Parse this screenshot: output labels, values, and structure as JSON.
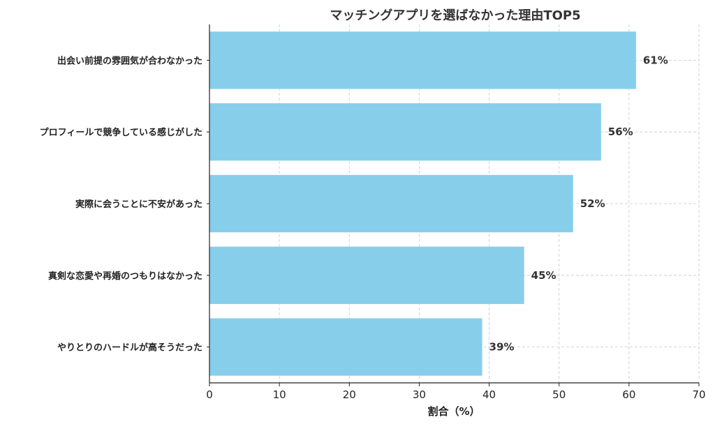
{
  "chart_data": {
    "type": "bar",
    "orientation": "horizontal",
    "title": "マッチングアプリを選ばなかった理由TOP5",
    "xlabel": "割合（%）",
    "ylabel": "",
    "xlim": [
      0,
      70
    ],
    "x_ticks": [
      0,
      10,
      20,
      30,
      40,
      50,
      60,
      70
    ],
    "grid": true,
    "categories": [
      "出会い前提の雰囲気が合わなかった",
      "プロフィールで競争している感じがした",
      "実際に会うことに不安があった",
      "真剣な恋愛や再婚のつもりはなかった",
      "やりとりのハードルが高そうだった"
    ],
    "values": [
      61,
      56,
      52,
      45,
      39
    ],
    "value_labels": [
      "61%",
      "56%",
      "52%",
      "45%",
      "39%"
    ],
    "bar_color": "#87CEEB",
    "grid_color": "#c8c8c8",
    "axis_color": "#222222"
  }
}
